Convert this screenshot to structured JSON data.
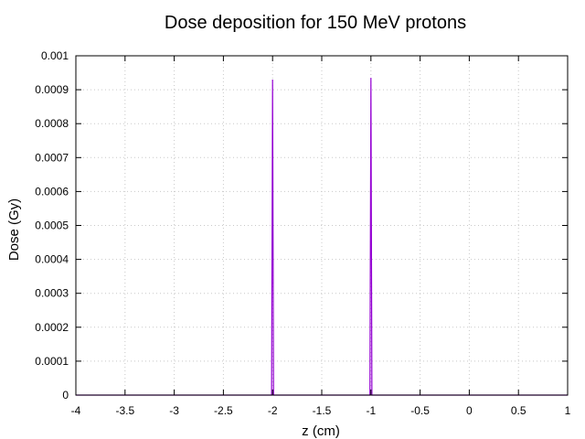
{
  "chart_data": {
    "type": "line",
    "title": "Dose deposition for 150 MeV protons",
    "xlabel": "z (cm)",
    "ylabel": "Dose (Gy)",
    "xlim": [
      -4,
      1
    ],
    "ylim": [
      0,
      0.001
    ],
    "x_ticks": [
      -4,
      -3.5,
      -3,
      -2.5,
      -2,
      -1.5,
      -1,
      -0.5,
      0,
      0.5,
      1
    ],
    "x_tick_labels": [
      "-4",
      "-3.5",
      "-3",
      "-2.5",
      "-2",
      "-1.5",
      "-1",
      "-0.5",
      "0",
      "0.5",
      "1"
    ],
    "y_ticks": [
      0,
      0.0001,
      0.0002,
      0.0003,
      0.0004,
      0.0005,
      0.0006,
      0.0007,
      0.0008,
      0.0009,
      0.001
    ],
    "y_tick_labels": [
      "0",
      "0.0001",
      "0.0002",
      "0.0003",
      "0.0004",
      "0.0005",
      "0.0006",
      "0.0007",
      "0.0008",
      "0.0009",
      "0.001"
    ],
    "grid": true,
    "series": [
      {
        "color": "#9400d3",
        "x": [
          -4,
          -2.02,
          -2.01,
          -2.0,
          -1.99,
          -1.98,
          -1.02,
          -1.01,
          -1.0,
          -0.99,
          -0.98,
          1
        ],
        "y": [
          0,
          0,
          0,
          0.00093,
          0,
          0,
          0,
          0,
          0.000935,
          0,
          0,
          0
        ]
      }
    ]
  }
}
